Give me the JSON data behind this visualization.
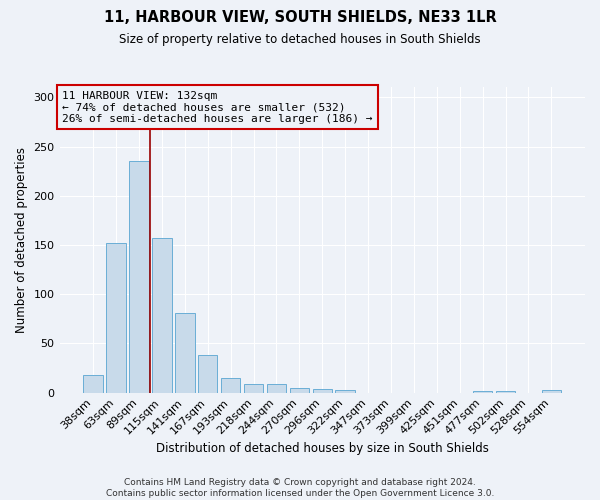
{
  "title": "11, HARBOUR VIEW, SOUTH SHIELDS, NE33 1LR",
  "subtitle": "Size of property relative to detached houses in South Shields",
  "xlabel": "Distribution of detached houses by size in South Shields",
  "ylabel": "Number of detached properties",
  "bar_color": "#c8daea",
  "bar_edge_color": "#6aaed6",
  "background_color": "#eef2f8",
  "annotation_line_color": "#990000",
  "annotation_box_edge_color": "#cc0000",
  "annotation_text": "11 HARBOUR VIEW: 132sqm\n← 74% of detached houses are smaller (532)\n26% of semi-detached houses are larger (186) →",
  "categories": [
    "38sqm",
    "63sqm",
    "89sqm",
    "115sqm",
    "141sqm",
    "167sqm",
    "193sqm",
    "218sqm",
    "244sqm",
    "270sqm",
    "296sqm",
    "322sqm",
    "347sqm",
    "373sqm",
    "399sqm",
    "425sqm",
    "451sqm",
    "477sqm",
    "502sqm",
    "528sqm",
    "554sqm"
  ],
  "values": [
    18,
    152,
    235,
    157,
    81,
    38,
    15,
    9,
    9,
    5,
    4,
    3,
    0,
    0,
    0,
    0,
    0,
    2,
    2,
    0,
    3
  ],
  "red_line_x": 2.5,
  "ylim": [
    0,
    310
  ],
  "yticks": [
    0,
    50,
    100,
    150,
    200,
    250,
    300
  ],
  "footer_text": "Contains HM Land Registry data © Crown copyright and database right 2024.\nContains public sector information licensed under the Open Government Licence 3.0.",
  "figsize": [
    6.0,
    5.0
  ],
  "dpi": 100
}
